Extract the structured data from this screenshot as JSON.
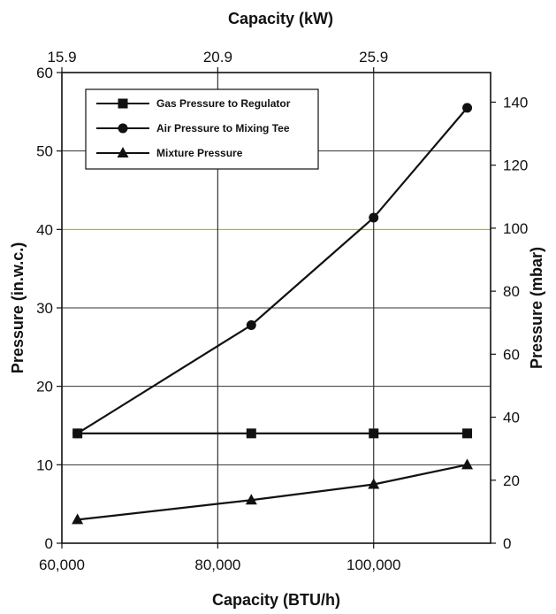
{
  "chart_data": {
    "type": "line",
    "title": "",
    "xlabel": "Capacity (BTU/h)",
    "x2label": "Capacity (kW)",
    "ylabel": "Pressure (in.w.c.)",
    "y2label": "Pressure (mbar)",
    "xlim": [
      60000,
      115000
    ],
    "ylim": [
      0,
      60
    ],
    "y2lim": [
      0,
      149.4
    ],
    "x_ticks": [
      60000,
      80000,
      100000
    ],
    "x_tick_labels": [
      "60,000",
      "80,000",
      "100,000"
    ],
    "x2_ticks": [
      15.9,
      20.9,
      25.9
    ],
    "x2_tick_labels": [
      "15.9",
      "20.9",
      "25.9"
    ],
    "y_ticks": [
      0,
      10,
      20,
      30,
      40,
      50,
      60
    ],
    "y_tick_labels": [
      "0",
      "10",
      "20",
      "30",
      "40",
      "50",
      "60"
    ],
    "y2_ticks": [
      0,
      20,
      40,
      60,
      80,
      100,
      120,
      140
    ],
    "y2_tick_labels": [
      "0",
      "20",
      "40",
      "60",
      "80",
      "100",
      "120",
      "140"
    ],
    "grid": true,
    "legend_position": "top-left",
    "series": [
      {
        "name": "Gas Pressure to Regulator",
        "marker": "square",
        "x": [
          62000,
          84300,
          100000,
          112000
        ],
        "y": [
          14,
          14,
          14,
          14
        ]
      },
      {
        "name": "Air Pressure to Mixing Tee",
        "marker": "circle",
        "x": [
          62000,
          84300,
          100000,
          112000
        ],
        "y": [
          14,
          27.8,
          41.5,
          55.5
        ]
      },
      {
        "name": "Mixture Pressure",
        "marker": "triangle",
        "x": [
          62000,
          84300,
          100000,
          112000
        ],
        "y": [
          3,
          5.5,
          7.5,
          10
        ]
      }
    ],
    "colors": {
      "line": "#111111",
      "grid": "#333333",
      "accent_grid": "#8fa05a"
    }
  }
}
